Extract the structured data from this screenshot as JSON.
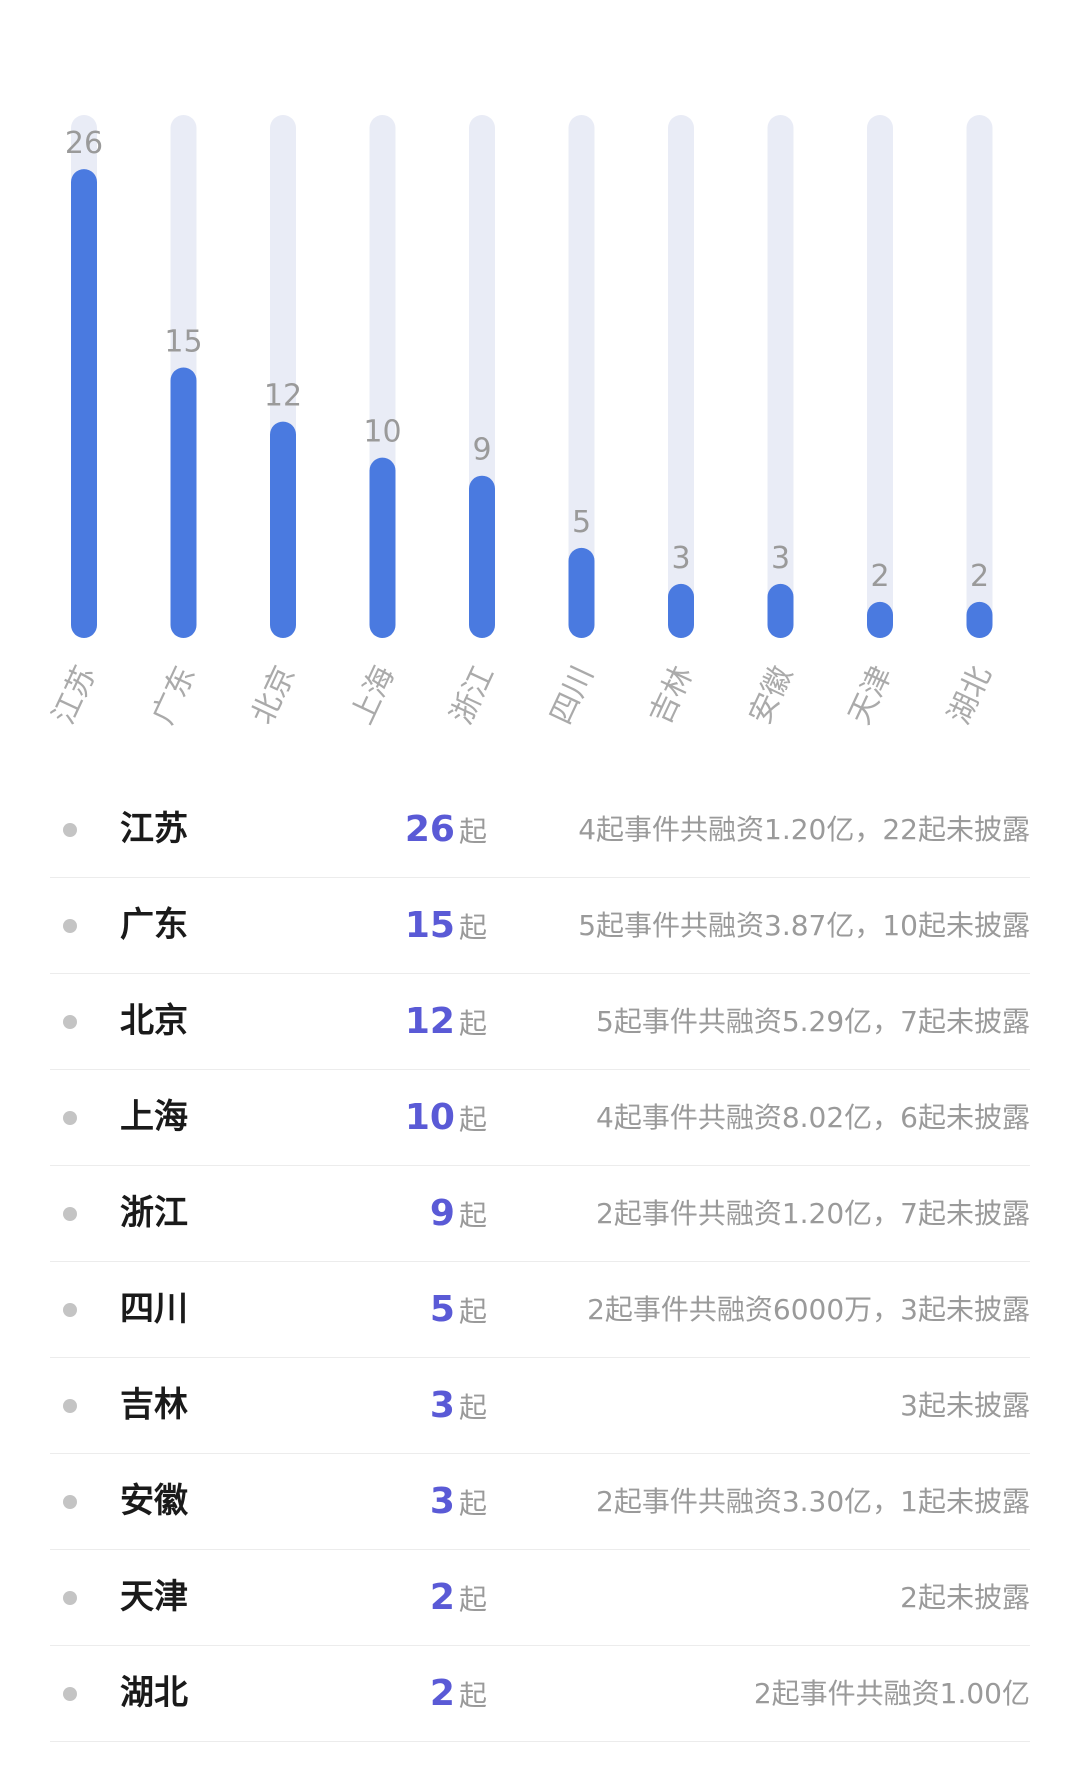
{
  "chart_data": {
    "type": "bar",
    "categories": [
      "江苏",
      "广东",
      "北京",
      "上海",
      "浙江",
      "四川",
      "吉林",
      "安徽",
      "天津",
      "湖北"
    ],
    "values": [
      26,
      15,
      12,
      10,
      9,
      5,
      3,
      3,
      2,
      2
    ],
    "ylim": [
      0,
      29
    ],
    "grid": false,
    "legend": "none",
    "colors": {
      "bar": "#4a7ae0",
      "track": "#e9ecf6",
      "value_label": "#9a9a9a"
    }
  },
  "table": {
    "unit": "起",
    "rows": [
      {
        "name": "江苏",
        "count": "26",
        "desc": "4起事件共融资1.20亿，22起未披露"
      },
      {
        "name": "广东",
        "count": "15",
        "desc": "5起事件共融资3.87亿，10起未披露"
      },
      {
        "name": "北京",
        "count": "12",
        "desc": "5起事件共融资5.29亿，7起未披露"
      },
      {
        "name": "上海",
        "count": "10",
        "desc": "4起事件共融资8.02亿，6起未披露"
      },
      {
        "name": "浙江",
        "count": "9",
        "desc": "2起事件共融资1.20亿，7起未披露"
      },
      {
        "name": "四川",
        "count": "5",
        "desc": "2起事件共融资6000万，3起未披露"
      },
      {
        "name": "吉林",
        "count": "3",
        "desc": "3起未披露"
      },
      {
        "name": "安徽",
        "count": "3",
        "desc": "2起事件共融资3.30亿，1起未披露"
      },
      {
        "name": "天津",
        "count": "2",
        "desc": "2起未披露"
      },
      {
        "name": "湖北",
        "count": "2",
        "desc": "2起事件共融资1.00亿"
      }
    ]
  }
}
